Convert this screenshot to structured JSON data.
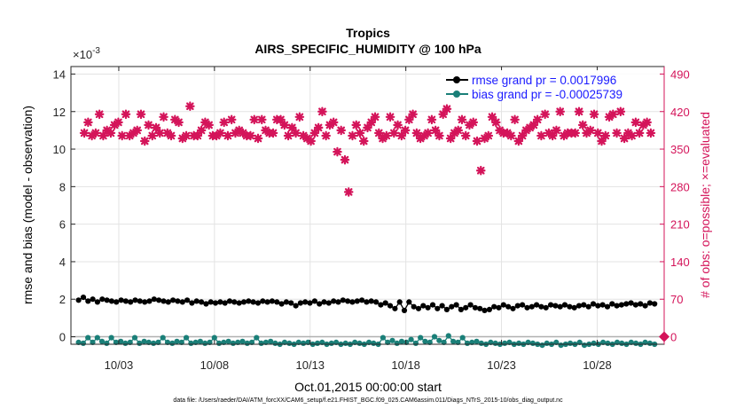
{
  "colors": {
    "rmse": "#000000",
    "bias": "#1a7f78",
    "obs": "#d4145a",
    "legend_text": "#1a1aff",
    "axis": "#262626",
    "grid": "#e3e3e3"
  },
  "chart_data": {
    "type": "scatter",
    "title": "Tropics",
    "subtitle": "AIRS_SPECIFIC_HUMIDITY @ 100 hPa",
    "xlabel": "Oct.01,2015 00:00:00 start",
    "ylabel": "rmse and bias (model - observation)",
    "ylabel_right": "# of obs: o=possible; ×=evaluated",
    "y_exponent_label": "×10",
    "y_exponent_power": "-3",
    "x_range_days": [
      0.5,
      31.5
    ],
    "x_tick_days": [
      3,
      8,
      13,
      18,
      23,
      28
    ],
    "x_tick_labels": [
      "10/03",
      "10/08",
      "10/13",
      "10/18",
      "10/23",
      "10/28"
    ],
    "ylim": [
      -0.0004,
      0.0144
    ],
    "y_ticks": [
      0,
      0.002,
      0.004,
      0.006,
      0.008,
      0.01,
      0.012,
      0.014
    ],
    "y_tick_labels": [
      "0",
      "2",
      "4",
      "6",
      "8",
      "10",
      "12",
      "14"
    ],
    "ylim_right": [
      -14,
      504
    ],
    "y_ticks_right": [
      0,
      70,
      140,
      210,
      280,
      350,
      420,
      490
    ],
    "y_tick_labels_right": [
      "0",
      "70",
      "140",
      "210",
      "280",
      "350",
      "420",
      "490"
    ],
    "legend": [
      {
        "key": "rmse",
        "label": "rmse grand pr = 0.0017996"
      },
      {
        "key": "bias",
        "label": "bias grand pr = -0.00025739"
      }
    ],
    "series": {
      "rmse": {
        "name": "rmse",
        "values_e3": [
          1.95,
          2.1,
          1.9,
          2.0,
          1.85,
          2.0,
          1.95,
          1.9,
          1.85,
          1.95,
          1.9,
          1.85,
          1.95,
          1.9,
          1.85,
          1.9,
          2.0,
          1.95,
          1.9,
          1.85,
          1.95,
          1.9,
          1.85,
          1.95,
          1.8,
          1.9,
          1.85,
          1.75,
          1.85,
          1.8,
          1.85,
          1.8,
          1.9,
          1.85,
          1.8,
          1.85,
          1.9,
          1.85,
          1.8,
          1.9,
          1.85,
          1.9,
          1.85,
          1.75,
          1.85,
          1.8,
          1.65,
          1.8,
          1.85,
          1.8,
          1.9,
          1.75,
          1.85,
          1.8,
          1.9,
          1.85,
          1.95,
          1.9,
          1.85,
          1.9,
          1.95,
          1.85,
          1.9,
          1.85,
          1.7,
          1.8,
          1.65,
          1.5,
          1.85,
          1.4,
          1.85,
          1.6,
          1.5,
          1.65,
          1.55,
          1.7,
          1.5,
          1.65,
          1.45,
          1.6,
          1.7,
          1.45,
          1.55,
          1.7,
          1.55,
          1.5,
          1.4,
          1.45,
          1.6,
          1.55,
          1.7,
          1.6,
          1.5,
          1.65,
          1.7,
          1.55,
          1.6,
          1.7,
          1.6,
          1.55,
          1.7,
          1.65,
          1.6,
          1.7,
          1.6,
          1.55,
          1.65,
          1.7,
          1.6,
          1.75,
          1.65,
          1.7,
          1.6,
          1.75,
          1.65,
          1.7,
          1.75,
          1.8,
          1.7,
          1.75,
          1.65,
          1.8,
          1.75
        ]
      },
      "bias": {
        "name": "bias",
        "values_e3": [
          -0.3,
          -0.35,
          -0.05,
          -0.3,
          -0.05,
          -0.25,
          -0.35,
          -0.05,
          -0.3,
          -0.25,
          -0.35,
          -0.3,
          -0.05,
          -0.35,
          -0.25,
          -0.3,
          -0.35,
          -0.3,
          -0.05,
          -0.3,
          -0.35,
          -0.25,
          -0.3,
          -0.05,
          -0.35,
          -0.3,
          -0.25,
          -0.35,
          -0.3,
          -0.05,
          -0.35,
          -0.3,
          -0.25,
          -0.35,
          -0.3,
          -0.25,
          -0.35,
          -0.3,
          -0.05,
          -0.35,
          -0.3,
          -0.25,
          -0.35,
          -0.4,
          -0.3,
          -0.35,
          -0.4,
          -0.3,
          -0.35,
          -0.3,
          -0.4,
          -0.35,
          -0.3,
          -0.4,
          -0.35,
          -0.3,
          -0.4,
          -0.35,
          -0.4,
          -0.3,
          -0.35,
          -0.4,
          -0.3,
          -0.35,
          -0.4,
          -0.05,
          -0.3,
          -0.2,
          -0.35,
          -0.25,
          -0.3,
          -0.15,
          -0.35,
          -0.05,
          -0.25,
          -0.3,
          0.0,
          -0.2,
          -0.3,
          0.05,
          -0.25,
          -0.3,
          -0.05,
          -0.35,
          -0.3,
          -0.25,
          -0.35,
          -0.4,
          -0.3,
          -0.35,
          -0.4,
          -0.35,
          -0.3,
          -0.4,
          -0.35,
          -0.4,
          -0.3,
          -0.35,
          -0.4,
          -0.45,
          -0.35,
          -0.4,
          -0.3,
          -0.45,
          -0.4,
          -0.35,
          -0.4,
          -0.3,
          -0.45,
          -0.4,
          -0.35,
          -0.4,
          -0.3,
          -0.35,
          -0.4,
          -0.3,
          -0.35,
          -0.4,
          -0.3,
          -0.35,
          -0.4,
          -0.3,
          -0.35,
          -0.4
        ]
      },
      "obs": {
        "name": "# of obs evaluated",
        "values": [
          380,
          400,
          375,
          380,
          415,
          375,
          385,
          380,
          395,
          400,
          375,
          415,
          375,
          380,
          385,
          415,
          365,
          395,
          375,
          390,
          380,
          410,
          380,
          375,
          405,
          400,
          370,
          375,
          430,
          375,
          375,
          385,
          400,
          395,
          375,
          375,
          380,
          400,
          375,
          405,
          380,
          385,
          380,
          375,
          375,
          405,
          370,
          405,
          385,
          380,
          380,
          405,
          405,
          395,
          375,
          390,
          380,
          410,
          375,
          370,
          365,
          380,
          390,
          420,
          375,
          395,
          400,
          345,
          385,
          330,
          270,
          375,
          395,
          380,
          365,
          390,
          400,
          410,
          380,
          370,
          375,
          410,
          380,
          395,
          375,
          385,
          405,
          415,
          380,
          370,
          375,
          380,
          405,
          385,
          375,
          415,
          425,
          370,
          380,
          385,
          405,
          375,
          395,
          400,
          365,
          310,
          370,
          375,
          410,
          400,
          385,
          380,
          380,
          375,
          405,
          365,
          375,
          385,
          390,
          395,
          405,
          375,
          415,
          380,
          375,
          385,
          420,
          375,
          380,
          380,
          380,
          420,
          395,
          380,
          385,
          415,
          380,
          365,
          375,
          410,
          415,
          380,
          420,
          370,
          380,
          375,
          400,
          380,
          395,
          400,
          380
        ]
      }
    }
  },
  "footer": "data file: /Users/raeder/DAI/ATM_forcXX/CAM6_setup/f.e21.FHIST_BGC.f09_025.CAM6assim.011/Diags_NTrS_2015-10/obs_diag_output.nc"
}
